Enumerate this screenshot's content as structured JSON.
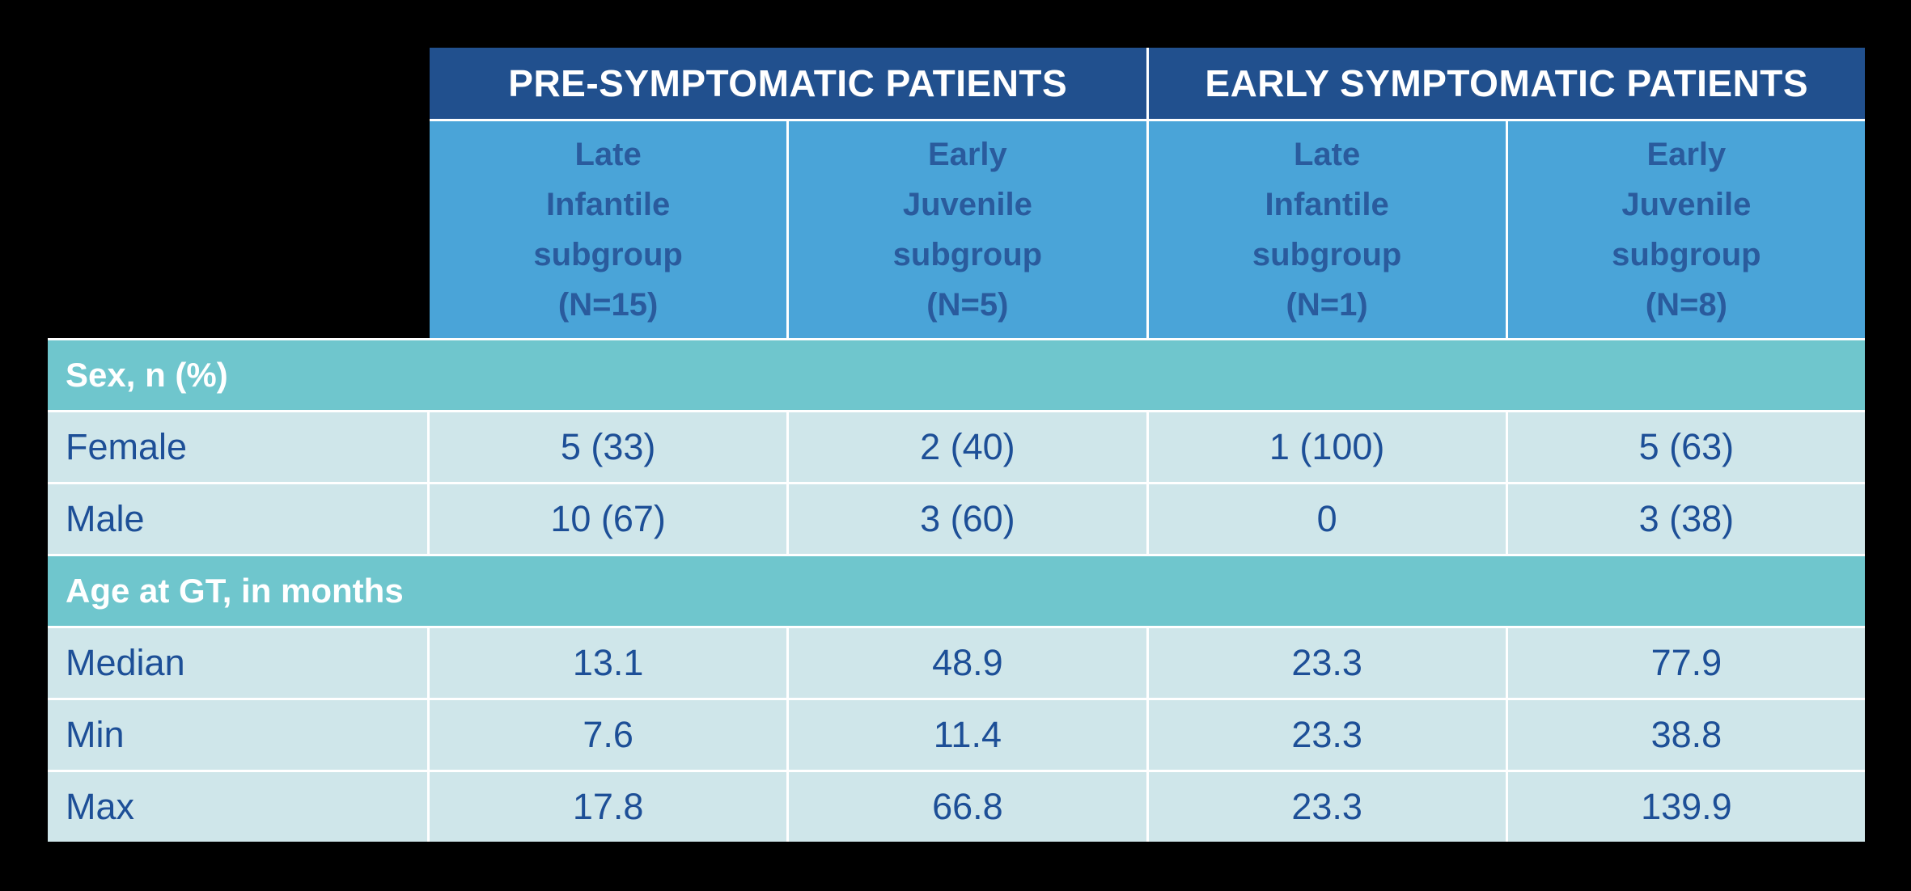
{
  "chart_data": {
    "type": "table",
    "title": "",
    "column_groups": [
      {
        "label": "PRE-SYMPTOMATIC PATIENTS",
        "span": 2
      },
      {
        "label": "EARLY SYMPTOMATIC PATIENTS",
        "span": 2
      }
    ],
    "columns": [
      "Late\nInfantile\nsubgroup\n(N=15)",
      "Early\nJuvenile\nsubgroup\n(N=5)",
      "Late\nInfantile\nsubgroup\n(N=1)",
      "Early\nJuvenile\nsubgroup\n(N=8)"
    ],
    "sections": [
      {
        "header": "Sex, n (%)",
        "rows": [
          {
            "label": "Female",
            "values": [
              "5 (33)",
              "2 (40)",
              "1 (100)",
              "5 (63)"
            ]
          },
          {
            "label": "Male",
            "values": [
              "10 (67)",
              "3 (60)",
              "0",
              "3 (38)"
            ]
          }
        ]
      },
      {
        "header": "Age at GT, in months",
        "rows": [
          {
            "label": "Median",
            "values": [
              "13.1",
              "48.9",
              "23.3",
              "77.9"
            ]
          },
          {
            "label": "Min",
            "values": [
              "7.6",
              "11.4",
              "23.3",
              "38.8"
            ]
          },
          {
            "label": "Max",
            "values": [
              "17.8",
              "66.8",
              "23.3",
              "139.9"
            ]
          }
        ]
      }
    ],
    "colors": {
      "page_bg": "#000000",
      "header_dark": "#21508e",
      "header_text": "#ffffff",
      "header_light": "#4aa4d8",
      "subheader_text": "#2a5b9d",
      "section_bg": "#6fc6cd",
      "section_text": "#ffffff",
      "row_bg": "#cfe6ea",
      "row_text": "#1d4f97",
      "divider": "#ffffff"
    },
    "layout": {
      "grid": "on",
      "legend": "none"
    }
  }
}
